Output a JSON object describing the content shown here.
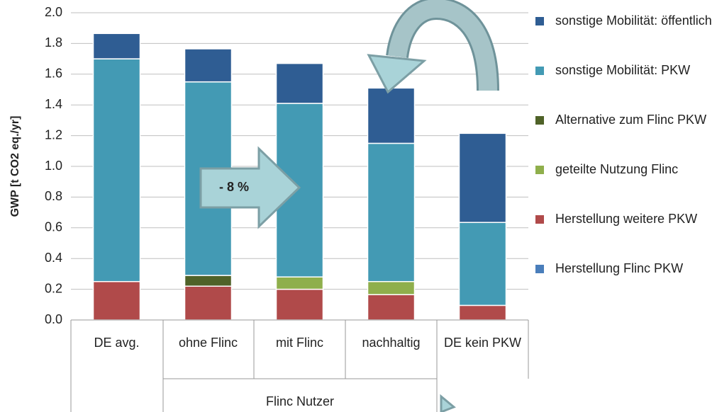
{
  "chart_data": {
    "type": "stacked_bar",
    "y_label": "GWP [t CO2 eq./yr]",
    "categories": [
      "DE avg.",
      "ohne Flinc",
      "mit Flinc",
      "nachhaltig",
      "DE kein PKW"
    ],
    "group_label": "Flinc Nutzer",
    "annotation": "- 8 %",
    "series": [
      {
        "name": "Herstellung Flinc PKW",
        "color": "#4a7ebb",
        "values": [
          0,
          0,
          0,
          0,
          0
        ]
      },
      {
        "name": "Herstellung weitere PKW",
        "color": "#b04a4a",
        "values": [
          0.25,
          0.22,
          0.2,
          0.165,
          0.095
        ]
      },
      {
        "name": "geteilte Nutzung Flinc",
        "color": "#8faf4c",
        "values": [
          0,
          0,
          0.08,
          0.085,
          0
        ]
      },
      {
        "name": "Alternative zum Flinc PKW",
        "color": "#4f6228",
        "values": [
          0,
          0.07,
          0,
          0,
          0
        ]
      },
      {
        "name": "sonstige Mobilität: PKW",
        "color": "#439ab4",
        "values": [
          1.45,
          1.26,
          1.13,
          0.9,
          0.54
        ]
      },
      {
        "name": "sonstige Mobilität: öffentlich",
        "color": "#2f5d93",
        "values": [
          0.165,
          0.215,
          0.26,
          0.36,
          0.58
        ]
      }
    ],
    "ylim": [
      0,
      2
    ],
    "yticks": [
      {
        "value": 0,
        "label": "0.0"
      },
      0.2,
      0.4,
      0.6,
      0.8,
      {
        "value": 1,
        "label": "1.0"
      },
      1.2,
      1.4,
      1.6,
      1.8,
      {
        "value": 2,
        "label": "2.0"
      }
    ],
    "grid": true
  }
}
